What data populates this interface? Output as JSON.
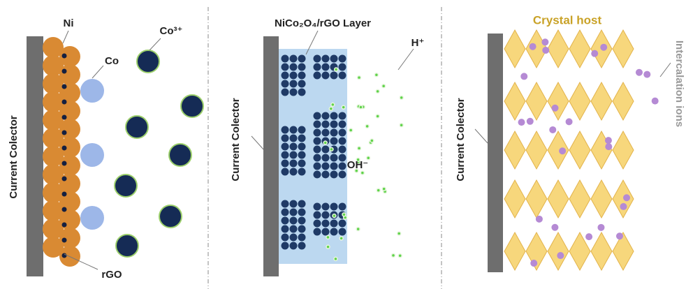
{
  "panels": [
    {
      "collector_label": "Current Colector",
      "labels": [
        "Ni",
        "Co",
        "Co³⁺",
        "rGO"
      ]
    },
    {
      "collector_label": "Current Colector",
      "labels": [
        "NiCo₂O₄/rGO Layer",
        "H⁺",
        "OH⁻"
      ]
    },
    {
      "collector_label": "Current Colector",
      "labels": [
        "Crystal host",
        "Intercalation ions"
      ]
    }
  ]
}
